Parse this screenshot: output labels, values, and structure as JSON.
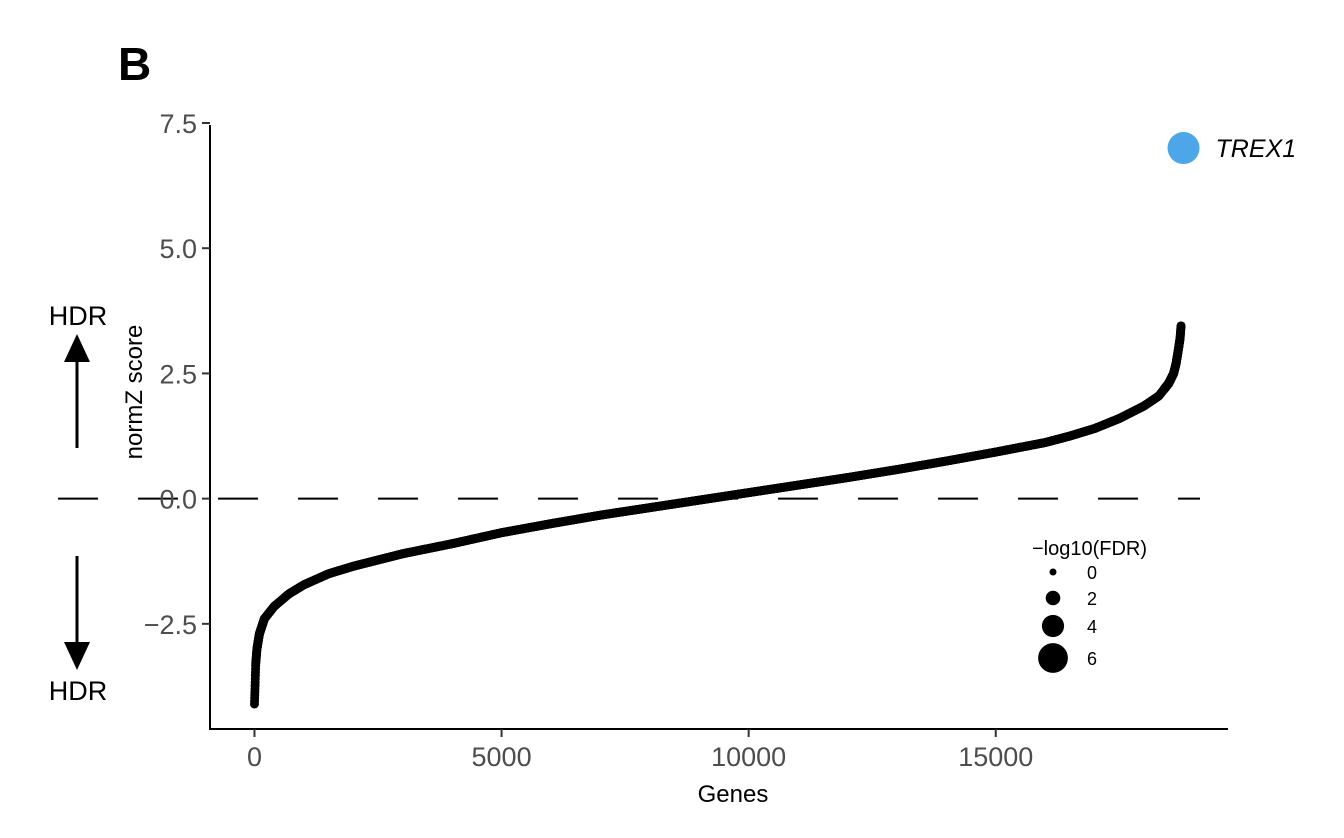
{
  "panel_label": "B",
  "side_labels": {
    "up": "HDR",
    "down": "HDR"
  },
  "colors": {
    "points": "#000000",
    "highlight": "#4da6e8",
    "axis": "#000000",
    "tick_text": "#4d4d4d"
  },
  "chart_data": {
    "type": "scatter",
    "xlabel": "Genes",
    "ylabel": "normZ score",
    "xlim": [
      -900,
      19700
    ],
    "ylim": [
      -4.6,
      7.6
    ],
    "x_ticks": [
      {
        "value": 0,
        "label": "0"
      },
      {
        "value": 5000,
        "label": "5000"
      },
      {
        "value": 10000,
        "label": "10000"
      },
      {
        "value": 15000,
        "label": "15000"
      }
    ],
    "y_ticks": [
      {
        "value": -2.5,
        "label": "−2.5"
      },
      {
        "value": 0,
        "label": "0.0"
      },
      {
        "value": 2.5,
        "label": "2.5"
      },
      {
        "value": 5,
        "label": "5.0"
      },
      {
        "value": 7.5,
        "label": "7.5"
      }
    ],
    "reference_line": {
      "y": 0,
      "style": "dashed"
    },
    "series": [
      {
        "n_points": 18800,
        "curve": [
          [
            0,
            -4.1
          ],
          [
            10,
            -3.8
          ],
          [
            25,
            -3.3
          ],
          [
            50,
            -3.0
          ],
          [
            100,
            -2.7
          ],
          [
            200,
            -2.4
          ],
          [
            400,
            -2.15
          ],
          [
            700,
            -1.9
          ],
          [
            1000,
            -1.72
          ],
          [
            1500,
            -1.5
          ],
          [
            2000,
            -1.35
          ],
          [
            3000,
            -1.1
          ],
          [
            4000,
            -0.9
          ],
          [
            5000,
            -0.68
          ],
          [
            6000,
            -0.5
          ],
          [
            7000,
            -0.33
          ],
          [
            8000,
            -0.18
          ],
          [
            9000,
            -0.03
          ],
          [
            10000,
            0.12
          ],
          [
            11000,
            0.27
          ],
          [
            12000,
            0.42
          ],
          [
            13000,
            0.58
          ],
          [
            14000,
            0.75
          ],
          [
            15000,
            0.93
          ],
          [
            16000,
            1.12
          ],
          [
            16500,
            1.25
          ],
          [
            17000,
            1.4
          ],
          [
            17500,
            1.6
          ],
          [
            18000,
            1.85
          ],
          [
            18300,
            2.05
          ],
          [
            18500,
            2.3
          ],
          [
            18600,
            2.5
          ],
          [
            18650,
            2.7
          ],
          [
            18700,
            3.0
          ],
          [
            18730,
            3.2
          ],
          [
            18750,
            3.45
          ]
        ]
      }
    ],
    "highlight": {
      "x": 18800,
      "y": 7.0,
      "label": "TREX1",
      "fdr": 7
    },
    "legend": {
      "title": "−log10(FDR)",
      "placement": "bottom-right",
      "entries": [
        {
          "value": 0,
          "label": "0"
        },
        {
          "value": 2,
          "label": "2"
        },
        {
          "value": 4,
          "label": "4"
        },
        {
          "value": 6,
          "label": "6"
        }
      ]
    },
    "grid": false
  }
}
